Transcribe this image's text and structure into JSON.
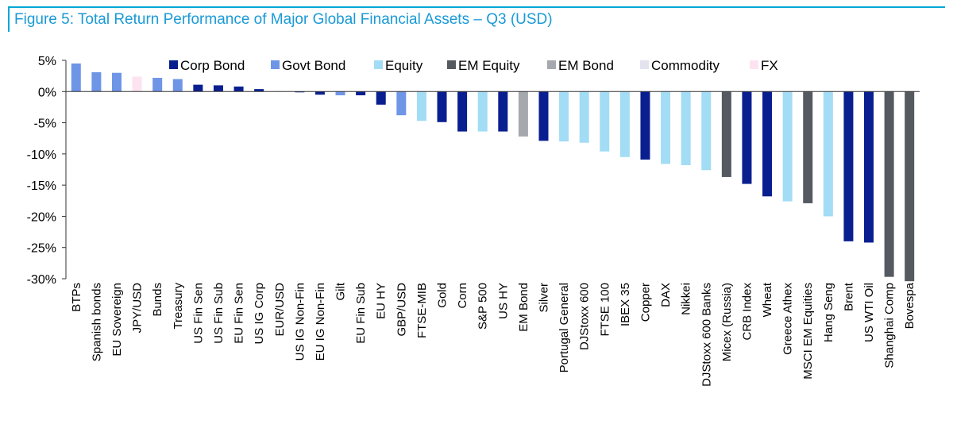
{
  "figure_title": "Figure 5: Total Return Performance of Major Global Financial Assets – Q3 (USD)",
  "colors": {
    "Corp Bond": "#0a1f8f",
    "Govt Bond": "#6f95e6",
    "Equity": "#a3dcf5",
    "EM Equity": "#555a61",
    "EM Bond": "#a5a8ad",
    "Commodity": "#e3e2ef",
    "FX": "#fde3f0"
  },
  "chart_data": {
    "type": "bar",
    "title": "Figure 5: Total Return Performance of Major Global Financial Assets – Q3 (USD)",
    "xlabel": "",
    "ylabel": "",
    "ylim": [
      -30,
      5
    ],
    "yticks": [
      5,
      0,
      -5,
      -10,
      -15,
      -20,
      -25,
      -30
    ],
    "ytick_labels": [
      "5%",
      "0%",
      "-5%",
      "-10%",
      "-15%",
      "-20%",
      "-25%",
      "-30%"
    ],
    "legend": [
      "Corp Bond",
      "Govt Bond",
      "Equity",
      "EM Equity",
      "EM Bond",
      "Commodity",
      "FX"
    ],
    "legend_position": "top",
    "categories": [
      "BTPs",
      "Spanish bonds",
      "EU Sovereign",
      "JPY/USD",
      "Bunds",
      "Treasury",
      "US Fin Sen",
      "US Fin Sub",
      "EU Fin Sen",
      "US IG Corp",
      "EUR/USD",
      "US IG Non-Fin",
      "EU IG Non-Fin",
      "Gilt",
      "EU Fin Sub",
      "EU HY",
      "GBP/USD",
      "FTSE-MIB",
      "Gold",
      "Corn",
      "S&P 500",
      "US HY",
      "EM Bond",
      "Silver",
      "Portugal General",
      "DJStoxx 600",
      "FTSE 100",
      "IBEX 35",
      "Copper",
      "DAX",
      "Nikkei",
      "DJStoxx 600 Banks",
      "Micex (Russia)",
      "CRB Index",
      "Wheat",
      "Greece Athex",
      "MSCI EM Equities",
      "Hang Seng",
      "Brent",
      "US WTI Oil",
      "Shanghai Comp",
      "Bovespa"
    ],
    "values": [
      4.5,
      3.1,
      3.0,
      2.4,
      2.2,
      2.0,
      1.1,
      1.0,
      0.8,
      0.4,
      0.1,
      -0.1,
      -0.5,
      -0.6,
      -0.6,
      -2.1,
      -3.8,
      -4.7,
      -4.9,
      -6.4,
      -6.4,
      -6.4,
      -7.2,
      -7.9,
      -8.0,
      -8.2,
      -9.6,
      -10.5,
      -10.9,
      -11.6,
      -11.8,
      -12.6,
      -13.7,
      -14.8,
      -16.8,
      -17.6,
      -17.9,
      -20.0,
      -24.0,
      -24.2,
      -29.7,
      -30.4
    ],
    "series_type": [
      "Govt Bond",
      "Govt Bond",
      "Govt Bond",
      "FX",
      "Govt Bond",
      "Govt Bond",
      "Corp Bond",
      "Corp Bond",
      "Corp Bond",
      "Corp Bond",
      "FX",
      "Corp Bond",
      "Corp Bond",
      "Govt Bond",
      "Corp Bond",
      "Corp Bond",
      "Govt Bond",
      "Equity",
      "Corp Bond",
      "Corp Bond",
      "Equity",
      "Corp Bond",
      "EM Bond",
      "Corp Bond",
      "Equity",
      "Equity",
      "Equity",
      "Equity",
      "Corp Bond",
      "Equity",
      "Equity",
      "Equity",
      "EM Equity",
      "Corp Bond",
      "Corp Bond",
      "Equity",
      "EM Equity",
      "Equity",
      "Corp Bond",
      "Corp Bond",
      "EM Equity",
      "EM Equity"
    ]
  }
}
